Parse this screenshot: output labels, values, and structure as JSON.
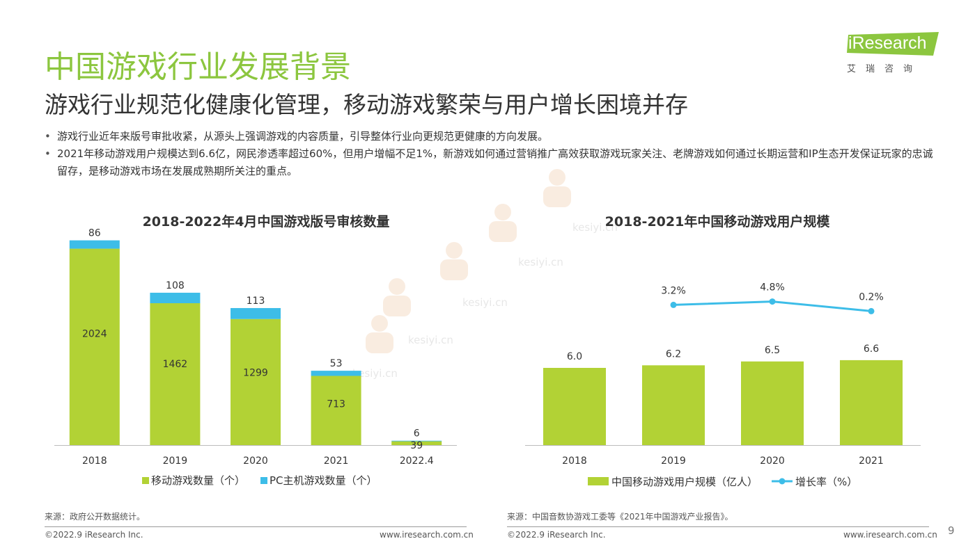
{
  "header": {
    "title": "中国游戏行业发展背景",
    "subtitle": "游戏行业规范化健康化管理，移动游戏繁荣与用户增长困境并存"
  },
  "logo": {
    "text": "iResearch",
    "sub": "艾瑞咨询",
    "color": "#8cc63f"
  },
  "bullets": [
    "游戏行业近年来版号审批收紧，从源头上强调游戏的内容质量，引导整体行业向更规范更健康的方向发展。",
    "2021年移动游戏用户规模达到6.6亿，网民渗透率超过60%，但用户增幅不足1%，新游戏如何通过营销推广高效获取游戏玩家关注、老牌游戏如何通过长期运营和IP生态开发保证玩家的忠诚留存，是移动游戏市场在发展成熟期所关注的重点。"
  ],
  "watermark_text": "kesiyi.cn",
  "chart_data": [
    {
      "type": "bar",
      "stacked": true,
      "title": "2018-2022年4月中国游戏版号审核数量",
      "categories": [
        "2018",
        "2019",
        "2020",
        "2021",
        "2022.4"
      ],
      "series": [
        {
          "name": "移动游戏数量（个）",
          "values": [
            2024,
            1462,
            1299,
            713,
            39
          ],
          "color": "#b2d235"
        },
        {
          "name": "PC主机游戏数量（个）",
          "values": [
            86,
            108,
            113,
            53,
            6
          ],
          "color": "#3dbde8"
        }
      ],
      "ylim": [
        0,
        2150
      ],
      "grid": false,
      "legend": "bottom"
    },
    {
      "type": "bar",
      "title": "2018-2021年中国移动游戏用户规模",
      "categories": [
        "2018",
        "2019",
        "2020",
        "2021"
      ],
      "series": [
        {
          "name": "中国移动游戏用户规模（亿人）",
          "type": "bar",
          "values": [
            6.0,
            6.2,
            6.5,
            6.6
          ],
          "labels": [
            "6.0",
            "6.2",
            "6.5",
            "6.6"
          ],
          "color": "#b2d235"
        },
        {
          "name": "增长率（%）",
          "type": "line",
          "values": [
            null,
            3.2,
            4.8,
            0.2
          ],
          "labels": [
            "",
            "3.2%",
            "4.8%",
            "0.2%"
          ],
          "color": "#3dbde8"
        }
      ],
      "ylim": [
        0,
        10
      ],
      "grid": false,
      "legend": "bottom"
    }
  ],
  "sources": {
    "left": "来源：政府公开数据统计。",
    "right": "来源：中国音数协游戏工委等《2021年中国游戏产业报告》。"
  },
  "footer": {
    "copyright": "©2022.9 iResearch Inc.",
    "website": "www.iresearch.com.cn",
    "page": "9"
  }
}
